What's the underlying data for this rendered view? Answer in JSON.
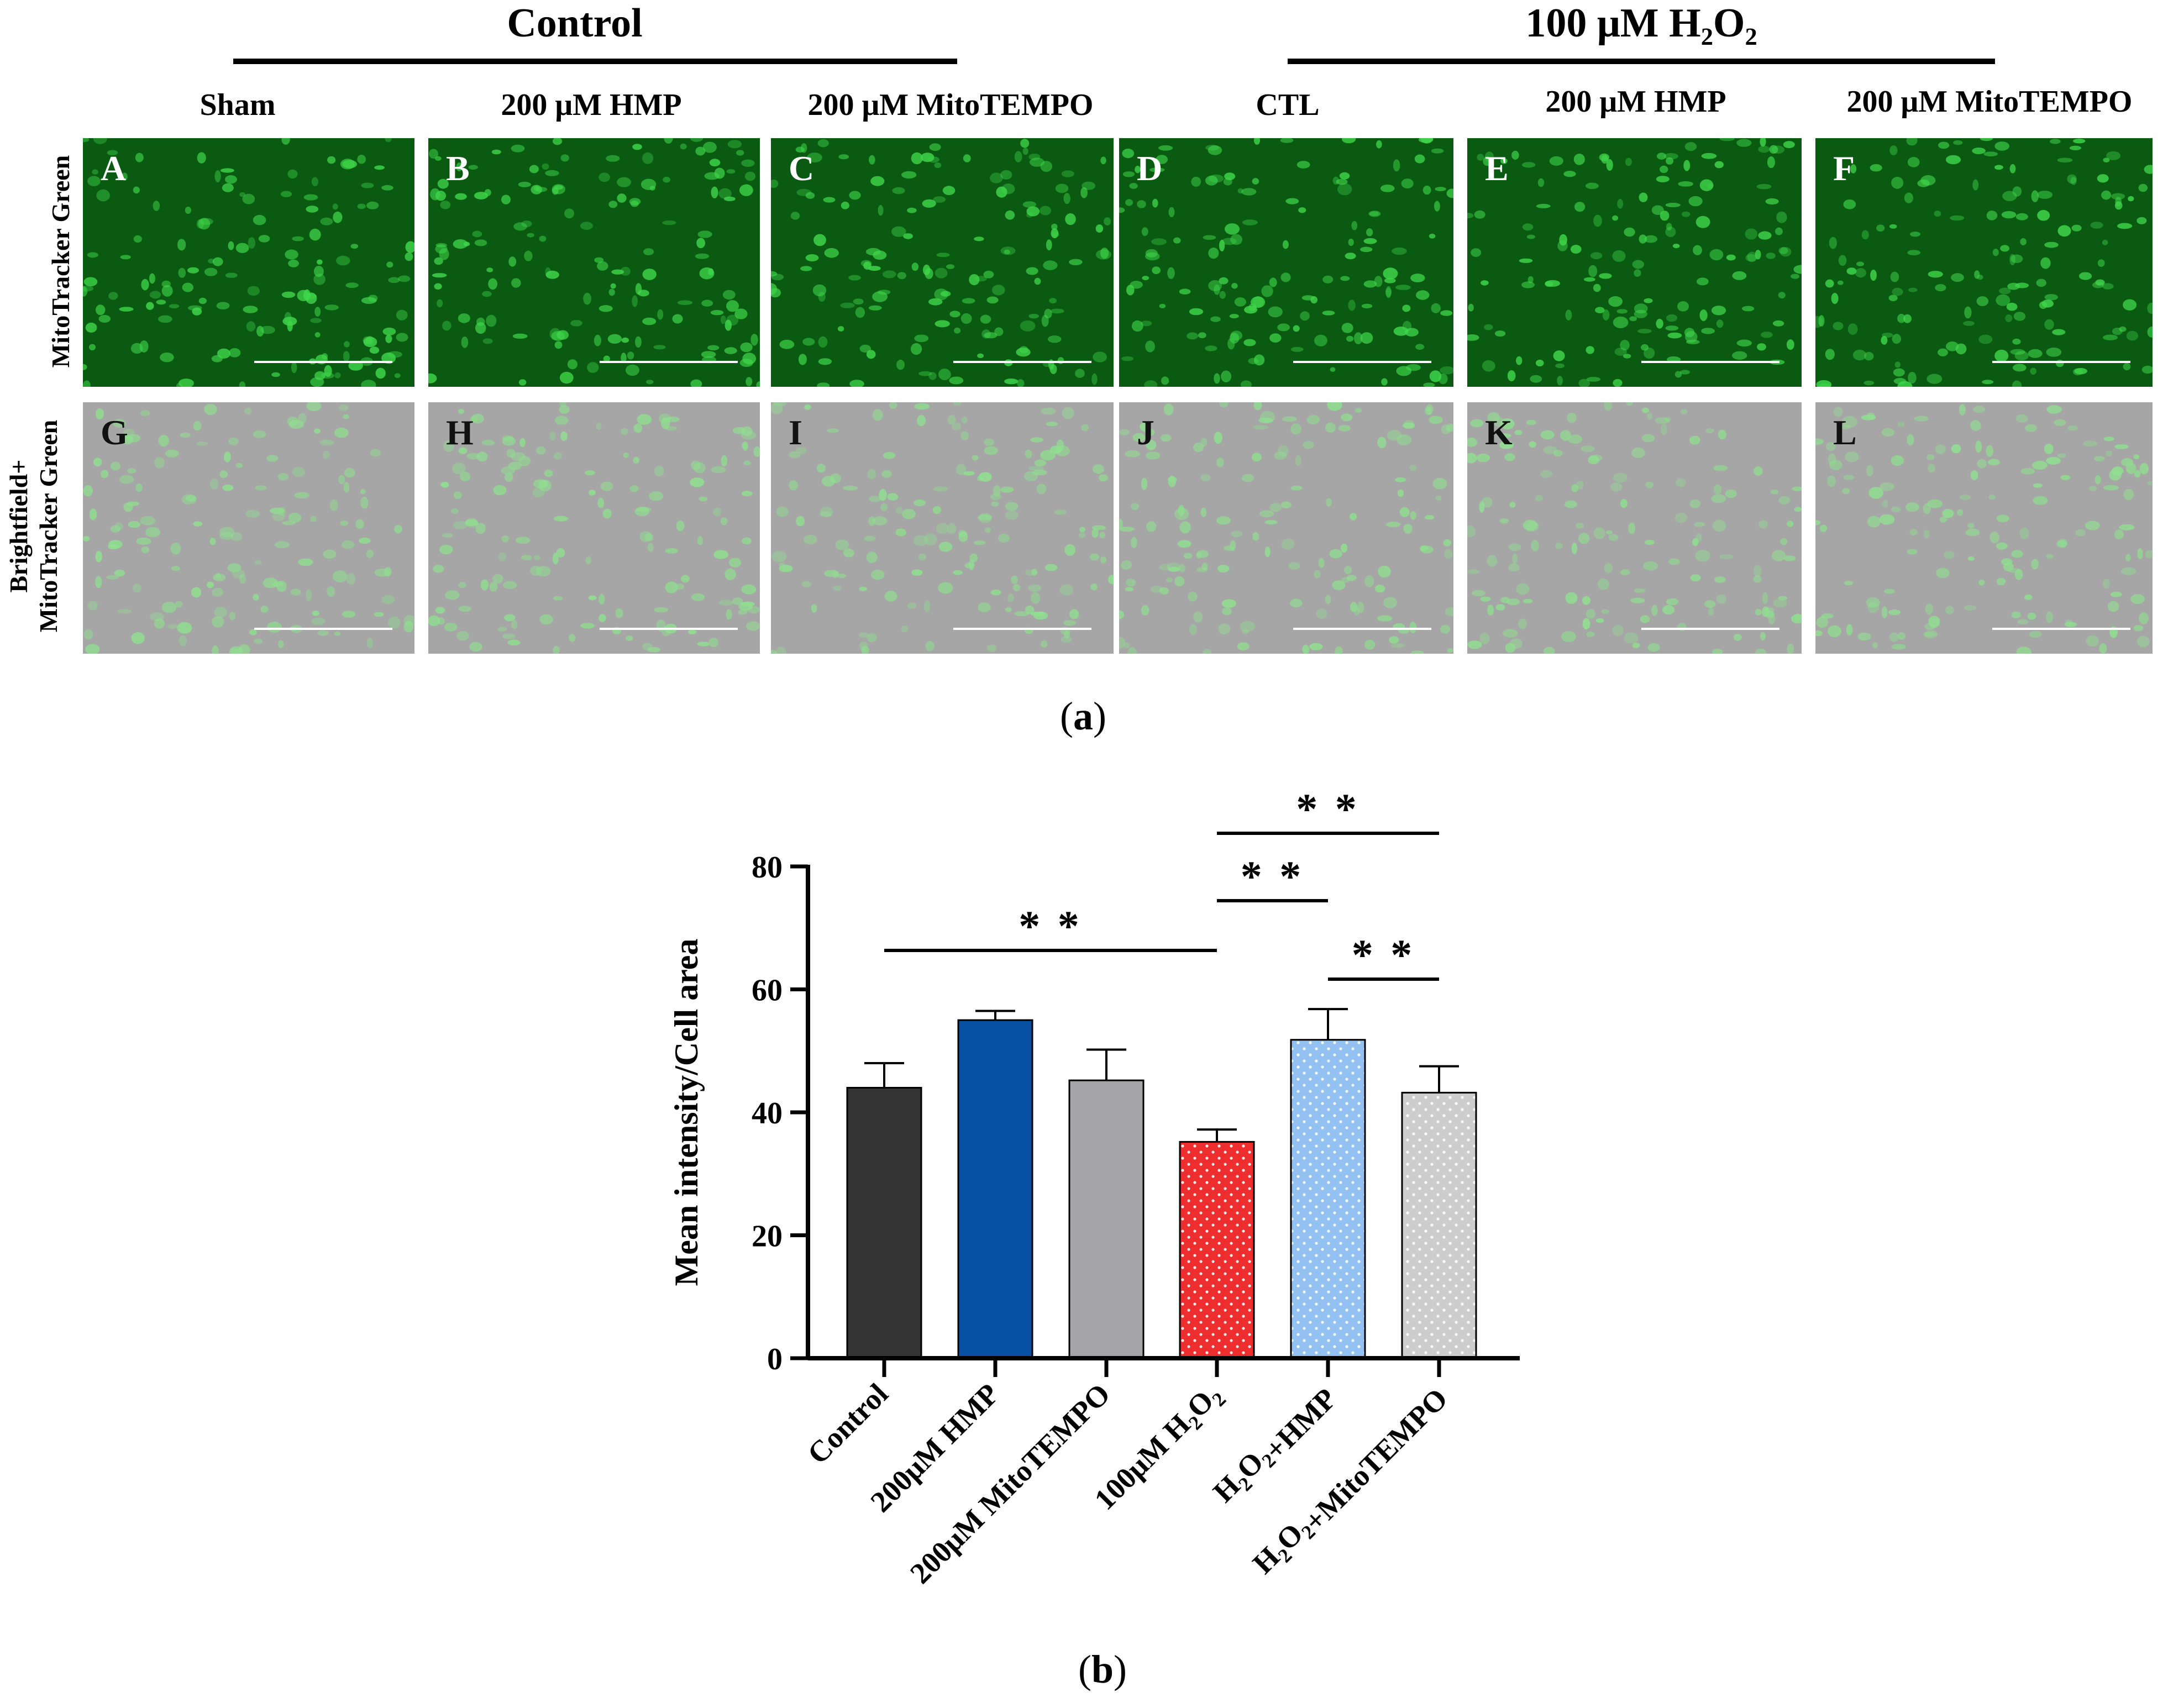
{
  "figure": {
    "groups": [
      {
        "title": "Control"
      },
      {
        "title": "100 μM H₂O₂"
      }
    ],
    "column_headers": [
      "Sham",
      "200 μM HMP",
      "200 μM MitoTEMPO",
      "CTL",
      "200 μM HMP",
      "200 μM MitoTEMPO"
    ],
    "row_labels": [
      "MitoTracker Green",
      "Brightfield+",
      "MitoTracker Green"
    ],
    "panel_letters_top": [
      "A",
      "B",
      "C",
      "D",
      "E",
      "F"
    ],
    "panel_letters_bottom": [
      "G",
      "H",
      "I",
      "J",
      "K",
      "L"
    ],
    "caption_a": {
      "open": "(",
      "letter": "a",
      "close": ")"
    },
    "caption_b": {
      "open": "(",
      "letter": "b",
      "close": ")"
    },
    "colors": {
      "fluo_bg": "#0a5a12",
      "fluo_cell": "#3fd64a",
      "bf_bg": "#a6a6a6",
      "bf_cell": "#8fe08f"
    }
  },
  "chart_data": {
    "type": "bar",
    "categories": [
      "Control",
      "200μM HMP",
      "200μM MitoTEMPO",
      "100μM H2O2",
      "H2O2+HMP",
      "H2O2+MitoTEMPO"
    ],
    "values": [
      44,
      55,
      45.2,
      35.2,
      51.8,
      43.2
    ],
    "errors": [
      4,
      1.5,
      5,
      2,
      5,
      4.3
    ],
    "colors": [
      "#333333",
      "#0750a4",
      "#a4a4a9",
      "#ee2e2e",
      "#93c2f2",
      "#cdcdcd"
    ],
    "dotted": [
      false,
      false,
      false,
      true,
      true,
      true
    ],
    "ylabel": "Mean intensity/Cell area",
    "ylim": [
      0,
      80
    ],
    "yticks": [
      0,
      20,
      40,
      60,
      80
    ],
    "significance": [
      {
        "from": 0,
        "to": 3,
        "label": "* *"
      },
      {
        "from": 3,
        "to": 4,
        "label": "* *"
      },
      {
        "from": 3,
        "to": 5,
        "label": "* *"
      },
      {
        "from": 4,
        "to": 5,
        "label": "* *"
      }
    ]
  }
}
